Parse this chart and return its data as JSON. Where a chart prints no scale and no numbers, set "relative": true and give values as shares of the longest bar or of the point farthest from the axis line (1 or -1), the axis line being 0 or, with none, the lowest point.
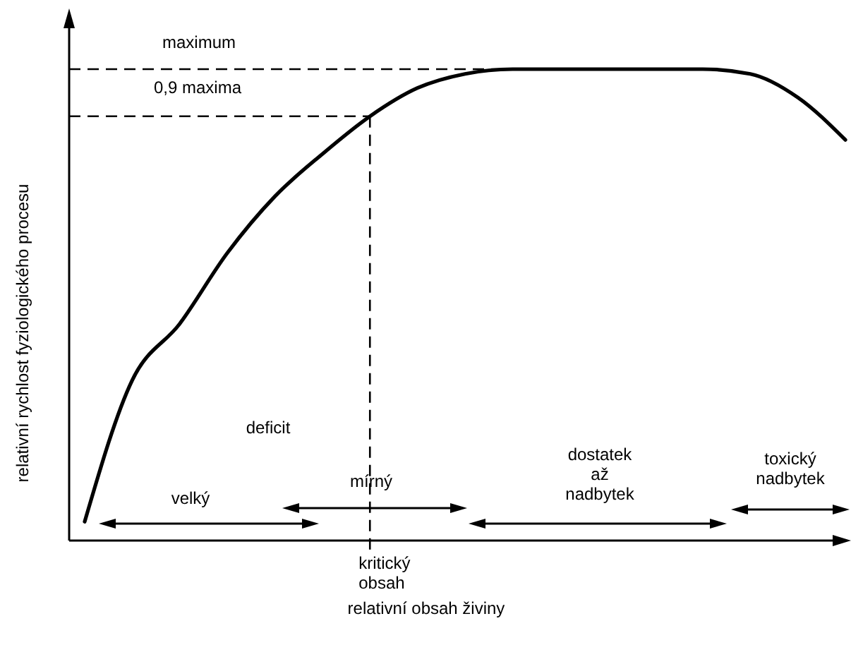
{
  "chart_data": {
    "type": "line",
    "relative": true,
    "xlabel": "relativní obsah živiny",
    "ylabel": "relativní rychlost fyziologického procesu",
    "categories": [
      null,
      null,
      null,
      null,
      null,
      null,
      null,
      null,
      null,
      null,
      null,
      null,
      null,
      null,
      null,
      null,
      null
    ],
    "series": [
      {
        "color": "#000000",
        "values": [
          0.04,
          0.34,
          0.46,
          0.61,
          0.73,
          0.82,
          0.9,
          0.96,
          0.99,
          1,
          1,
          1,
          1,
          1,
          0.99,
          0.94,
          0.85
        ]
      }
    ],
    "ref_lines": [
      {
        "axis": "y",
        "value": 1,
        "label": "maximum",
        "line_style": "dashed"
      },
      {
        "axis": "y",
        "value": 0.9,
        "label": "0,9 maxima",
        "line_style": "dashed"
      }
    ],
    "annotations": [
      "kritický obsah",
      "deficit",
      "velký",
      "mírný",
      "dostatek\naž\nnadbytek",
      "toxický\nnadbytek"
    ],
    "grid": false,
    "marker": "none",
    "line_style": "solid"
  }
}
